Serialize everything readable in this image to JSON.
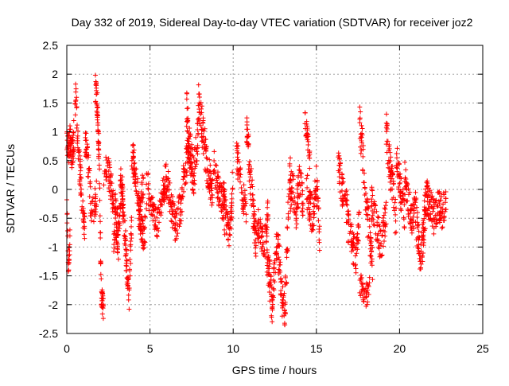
{
  "chart_data": {
    "type": "scatter",
    "title": "Day 332 of 2019, Sidereal Day-to-day VTEC variation (SDTVAR) for receiver joz2",
    "xlabel": "GPS time / hours",
    "ylabel": "SDTVAR / TECUs",
    "xlim": [
      0,
      25
    ],
    "ylim": [
      -2.5,
      2.5
    ],
    "xticks": [
      0,
      5,
      10,
      15,
      20,
      25
    ],
    "xtick_labels": [
      "0",
      "5",
      "10",
      "15",
      "20",
      "25"
    ],
    "yticks": [
      -2.5,
      -2,
      -1.5,
      -1,
      -0.5,
      0,
      0.5,
      1,
      1.5,
      2,
      2.5
    ],
    "ytick_labels": [
      "-2.5",
      "-2",
      "-1.5",
      "-1",
      "-0.5",
      "0",
      "0.5",
      "1",
      "1.5",
      "2",
      "2.5"
    ],
    "grid": true,
    "marker": "+",
    "color": "#ff0000",
    "series": [
      {
        "name": "SDTVAR",
        "x": [],
        "y": []
      }
    ]
  },
  "segments": [
    {
      "t0": 0.0,
      "t1": 0.4,
      "c": [
        0.8,
        0.7,
        0.9,
        0.6,
        0.8
      ],
      "s": 0.25,
      "n": 60
    },
    {
      "t0": 0.0,
      "t1": 0.2,
      "c": [
        -0.3,
        -1.3,
        -0.8
      ],
      "s": 0.2,
      "n": 25
    },
    {
      "t0": 0.4,
      "t1": 1.1,
      "c": [
        0.8,
        1.6,
        0.7,
        0.2,
        -0.3,
        -0.7
      ],
      "s": 0.3,
      "n": 70
    },
    {
      "t0": 1.1,
      "t1": 1.8,
      "c": [
        0.9,
        0.5,
        -0.3,
        -0.4,
        0.0
      ],
      "s": 0.3,
      "n": 60
    },
    {
      "t0": 1.7,
      "t1": 2.2,
      "c": [
        1.8,
        1.5,
        0.5,
        -1.9,
        -2.0
      ],
      "s": 0.25,
      "n": 90
    },
    {
      "t0": 2.2,
      "t1": 3.1,
      "c": [
        0.3,
        0.5,
        0.0,
        -0.3,
        -0.6
      ],
      "s": 0.3,
      "n": 70
    },
    {
      "t0": 2.8,
      "t1": 3.4,
      "c": [
        -0.9,
        -0.5,
        -1.0,
        0.1,
        -0.4
      ],
      "s": 0.3,
      "n": 70
    },
    {
      "t0": 3.3,
      "t1": 3.9,
      "c": [
        0.1,
        -0.6,
        -1.3,
        -1.8,
        -0.5
      ],
      "s": 0.3,
      "n": 70
    },
    {
      "t0": 3.9,
      "t1": 4.6,
      "c": [
        0.6,
        0.4,
        0.0,
        -0.5,
        0.2
      ],
      "s": 0.3,
      "n": 70
    },
    {
      "t0": 4.3,
      "t1": 5.0,
      "c": [
        -0.3,
        -0.6,
        -1.0,
        0.2,
        -0.2
      ],
      "s": 0.3,
      "n": 60
    },
    {
      "t0": 5.0,
      "t1": 5.9,
      "c": [
        -0.2,
        -0.4,
        -0.6,
        -0.2,
        0.1
      ],
      "s": 0.25,
      "n": 80
    },
    {
      "t0": 5.9,
      "t1": 6.8,
      "c": [
        0.2,
        0.0,
        -0.4,
        -0.7,
        -0.3
      ],
      "s": 0.3,
      "n": 80
    },
    {
      "t0": 6.8,
      "t1": 7.3,
      "c": [
        -0.4,
        -0.2,
        0.3,
        0.4,
        0.8
      ],
      "s": 0.3,
      "n": 50
    },
    {
      "t0": 7.2,
      "t1": 7.9,
      "c": [
        1.4,
        0.8,
        0.5,
        0.2,
        0.6,
        1.0
      ],
      "s": 0.35,
      "n": 90
    },
    {
      "t0": 7.9,
      "t1": 8.8,
      "c": [
        1.6,
        1.2,
        0.8,
        0.4,
        0.1,
        -0.2
      ],
      "s": 0.35,
      "n": 100
    },
    {
      "t0": 8.8,
      "t1": 9.5,
      "c": [
        0.5,
        0.2,
        0.0,
        -0.2,
        -0.5
      ],
      "s": 0.3,
      "n": 60
    },
    {
      "t0": 9.4,
      "t1": 10.0,
      "c": [
        0.0,
        -0.5,
        -0.8,
        0.3
      ],
      "s": 0.3,
      "n": 60
    },
    {
      "t0": 10.2,
      "t1": 10.8,
      "c": [
        0.6,
        0.3,
        -0.1,
        -0.4
      ],
      "s": 0.3,
      "n": 50
    },
    {
      "t0": 10.8,
      "t1": 11.4,
      "c": [
        1.2,
        0.5,
        0.0,
        -0.6,
        -0.9
      ],
      "s": 0.35,
      "n": 70
    },
    {
      "t0": 11.4,
      "t1": 12.1,
      "c": [
        -0.5,
        -0.8,
        -1.0,
        -0.4
      ],
      "s": 0.3,
      "n": 60
    },
    {
      "t0": 12.0,
      "t1": 12.7,
      "c": [
        -1.0,
        -1.5,
        -2.1,
        -1.2,
        -0.7
      ],
      "s": 0.35,
      "n": 80
    },
    {
      "t0": 12.7,
      "t1": 13.5,
      "c": [
        -1.0,
        -1.8,
        -2.2,
        -0.5,
        0.1
      ],
      "s": 0.35,
      "n": 80
    },
    {
      "t0": 13.4,
      "t1": 14.2,
      "c": [
        0.3,
        0.0,
        -0.4,
        0.2,
        -0.2
      ],
      "s": 0.3,
      "n": 70
    },
    {
      "t0": 14.3,
      "t1": 14.6,
      "c": [
        1.3,
        0.9,
        0.5
      ],
      "s": 0.2,
      "n": 30
    },
    {
      "t0": 14.4,
      "t1": 15.2,
      "c": [
        0.0,
        -0.3,
        -0.5,
        0.2,
        -0.8
      ],
      "s": 0.35,
      "n": 80
    },
    {
      "t0": 16.3,
      "t1": 16.9,
      "c": [
        0.4,
        0.1,
        -0.2,
        -0.4
      ],
      "s": 0.3,
      "n": 50
    },
    {
      "t0": 16.9,
      "t1": 17.6,
      "c": [
        -0.6,
        -0.9,
        -1.2,
        -0.5
      ],
      "s": 0.3,
      "n": 60
    },
    {
      "t0": 17.6,
      "t1": 18.4,
      "c": [
        1.2,
        0.6,
        -0.3,
        -0.8,
        -1.3
      ],
      "s": 0.35,
      "n": 70
    },
    {
      "t0": 17.6,
      "t1": 18.2,
      "c": [
        -1.6,
        -1.9,
        -1.7
      ],
      "s": 0.2,
      "n": 40
    },
    {
      "t0": 18.3,
      "t1": 19.2,
      "c": [
        -0.2,
        -0.6,
        -1.0,
        -0.4
      ],
      "s": 0.3,
      "n": 70
    },
    {
      "t0": 19.2,
      "t1": 19.8,
      "c": [
        1.0,
        0.4,
        0.0,
        -0.6
      ],
      "s": 0.35,
      "n": 60
    },
    {
      "t0": 19.8,
      "t1": 20.3,
      "c": [
        0.6,
        0.2,
        -0.2,
        -0.4
      ],
      "s": 0.3,
      "n": 50
    },
    {
      "t0": 20.3,
      "t1": 21.0,
      "c": [
        0.2,
        -0.2,
        -0.5,
        -0.3
      ],
      "s": 0.3,
      "n": 60
    },
    {
      "t0": 21.0,
      "t1": 21.6,
      "c": [
        -0.5,
        -0.9,
        -1.3,
        -0.6,
        -0.2
      ],
      "s": 0.35,
      "n": 70
    },
    {
      "t0": 21.6,
      "t1": 22.8,
      "c": [
        -0.1,
        -0.3,
        -0.5,
        -0.2,
        -0.4,
        -0.1
      ],
      "s": 0.3,
      "n": 110
    }
  ]
}
